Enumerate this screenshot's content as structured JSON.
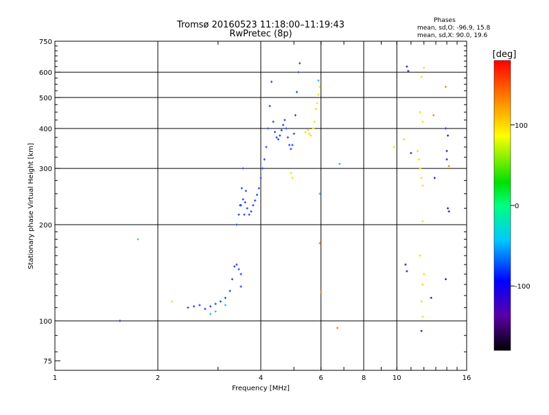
{
  "chart_data": {
    "type": "scatter",
    "title": "Tromsø 20160523 11:18:00–11:19:43",
    "subtitle": "RwPretec (8p)",
    "xlabel": "Frequency [MHz]",
    "ylabel": "Stationary phase Virtual Height [km]",
    "x_scale": "log",
    "y_scale": "log",
    "xlim": [
      1,
      16
    ],
    "ylim": [
      70,
      750
    ],
    "x_ticks": [
      1,
      2,
      4,
      6,
      8,
      10,
      16
    ],
    "y_ticks": [
      75,
      100,
      200,
      300,
      400,
      500,
      600,
      750
    ],
    "grid": true,
    "stats": {
      "heading": "Phases",
      "line1": "mean, sd,O: -96.9, 15.8",
      "line2": "mean, sd,X:  90.0, 19.6"
    },
    "colorbar": {
      "label": "[deg]",
      "range": [
        -180,
        180
      ],
      "ticks": [
        "100",
        "0",
        "-100"
      ],
      "tick_values": [
        100,
        0,
        -100
      ],
      "colors": [
        "#000000",
        "#5a00a8",
        "#0000ff",
        "#00c8ff",
        "#00ff80",
        "#00e000",
        "#ffff00",
        "#ff8000",
        "#ff0000"
      ]
    },
    "traces": [
      {
        "name": "",
        "phase": -100,
        "color": "#1e3cff",
        "points": [
          [
            2.45,
            110
          ],
          [
            2.55,
            111
          ],
          [
            2.65,
            112
          ],
          [
            2.75,
            109
          ],
          [
            2.85,
            111
          ],
          [
            2.95,
            113
          ],
          [
            3.05,
            115
          ],
          [
            3.15,
            118
          ],
          [
            3.25,
            124
          ],
          [
            3.3,
            135
          ],
          [
            3.35,
            148
          ],
          [
            3.4,
            150
          ],
          [
            3.45,
            145
          ],
          [
            3.5,
            140
          ],
          [
            3.5,
            128
          ],
          [
            3.4,
            200
          ],
          [
            3.45,
            215
          ],
          [
            3.5,
            230
          ],
          [
            3.55,
            240
          ],
          [
            3.6,
            235
          ],
          [
            3.65,
            225
          ],
          [
            3.7,
            215
          ],
          [
            3.75,
            220
          ],
          [
            3.8,
            230
          ],
          [
            3.85,
            238
          ],
          [
            3.9,
            248
          ],
          [
            3.95,
            260
          ],
          [
            4.0,
            280
          ],
          [
            4.05,
            300
          ],
          [
            4.1,
            320
          ],
          [
            4.15,
            350
          ],
          [
            4.2,
            400
          ],
          [
            4.25,
            470
          ],
          [
            4.3,
            560
          ],
          [
            4.35,
            420
          ],
          [
            4.4,
            390
          ],
          [
            4.45,
            375
          ],
          [
            4.5,
            370
          ],
          [
            4.55,
            380
          ],
          [
            4.6,
            395
          ],
          [
            4.65,
            410
          ],
          [
            4.7,
            425
          ],
          [
            4.75,
            400
          ],
          [
            4.8,
            375
          ],
          [
            4.85,
            355
          ],
          [
            4.9,
            345
          ],
          [
            4.95,
            355
          ],
          [
            5.0,
            385
          ],
          [
            5.05,
            440
          ],
          [
            5.1,
            520
          ],
          [
            5.15,
            600
          ],
          [
            5.2,
            640
          ],
          [
            3.48,
            230
          ],
          [
            3.52,
            260
          ],
          [
            3.55,
            300
          ],
          [
            3.58,
            215
          ],
          [
            3.62,
            255
          ]
        ]
      },
      {
        "name": "",
        "phase": -40,
        "color": "#28b4ff",
        "points": [
          [
            2.85,
            105
          ],
          [
            2.95,
            107
          ],
          [
            3.15,
            112
          ],
          [
            5.9,
            565
          ],
          [
            5.95,
            250
          ],
          [
            6.8,
            310
          ]
        ]
      },
      {
        "name": "",
        "phase": 110,
        "color": "#f0e000",
        "points": [
          [
            4.9,
            290
          ],
          [
            4.95,
            280
          ],
          [
            5.4,
            390
          ],
          [
            5.5,
            395
          ],
          [
            5.55,
            385
          ],
          [
            5.6,
            380
          ],
          [
            5.7,
            400
          ],
          [
            5.75,
            420
          ],
          [
            5.8,
            460
          ],
          [
            5.85,
            480
          ],
          [
            5.9,
            510
          ],
          [
            5.95,
            540
          ],
          [
            10.5,
            370
          ],
          [
            11.5,
            340
          ],
          [
            11.6,
            320
          ],
          [
            11.7,
            300
          ],
          [
            11.8,
            280
          ],
          [
            11.9,
            265
          ],
          [
            11.9,
            205
          ],
          [
            12.0,
            140
          ],
          [
            11.8,
            580
          ],
          [
            12.0,
            620
          ],
          [
            11.7,
            450
          ],
          [
            11.9,
            420
          ],
          [
            11.7,
            160
          ],
          [
            11.9,
            130
          ],
          [
            11.8,
            115
          ],
          [
            11.9,
            103
          ],
          [
            9.8,
            350
          ],
          [
            2.2,
            115
          ]
        ]
      },
      {
        "name": "",
        "phase": 150,
        "color": "#ff8000",
        "points": [
          [
            5.95,
            175
          ],
          [
            6.0,
            123
          ],
          [
            6.7,
            95
          ],
          [
            12.8,
            440
          ],
          [
            13.9,
            540
          ],
          [
            14.2,
            305
          ]
        ]
      },
      {
        "name": "",
        "phase": 30,
        "color": "#40e040",
        "points": [
          [
            1.75,
            180
          ]
        ]
      },
      {
        "name": "",
        "phase": -120,
        "color": "#2020c0",
        "points": [
          [
            1.55,
            100
          ],
          [
            10.7,
            625
          ],
          [
            10.8,
            605
          ],
          [
            11.0,
            335
          ],
          [
            10.6,
            150
          ],
          [
            10.7,
            143
          ],
          [
            11.8,
            93
          ],
          [
            12.6,
            118
          ],
          [
            12.9,
            280
          ],
          [
            13.9,
            400
          ],
          [
            14.1,
            380
          ],
          [
            14.0,
            340
          ],
          [
            14.1,
            225
          ],
          [
            14.2,
            220
          ],
          [
            13.9,
            135
          ],
          [
            14.0,
            320
          ]
        ]
      }
    ]
  }
}
